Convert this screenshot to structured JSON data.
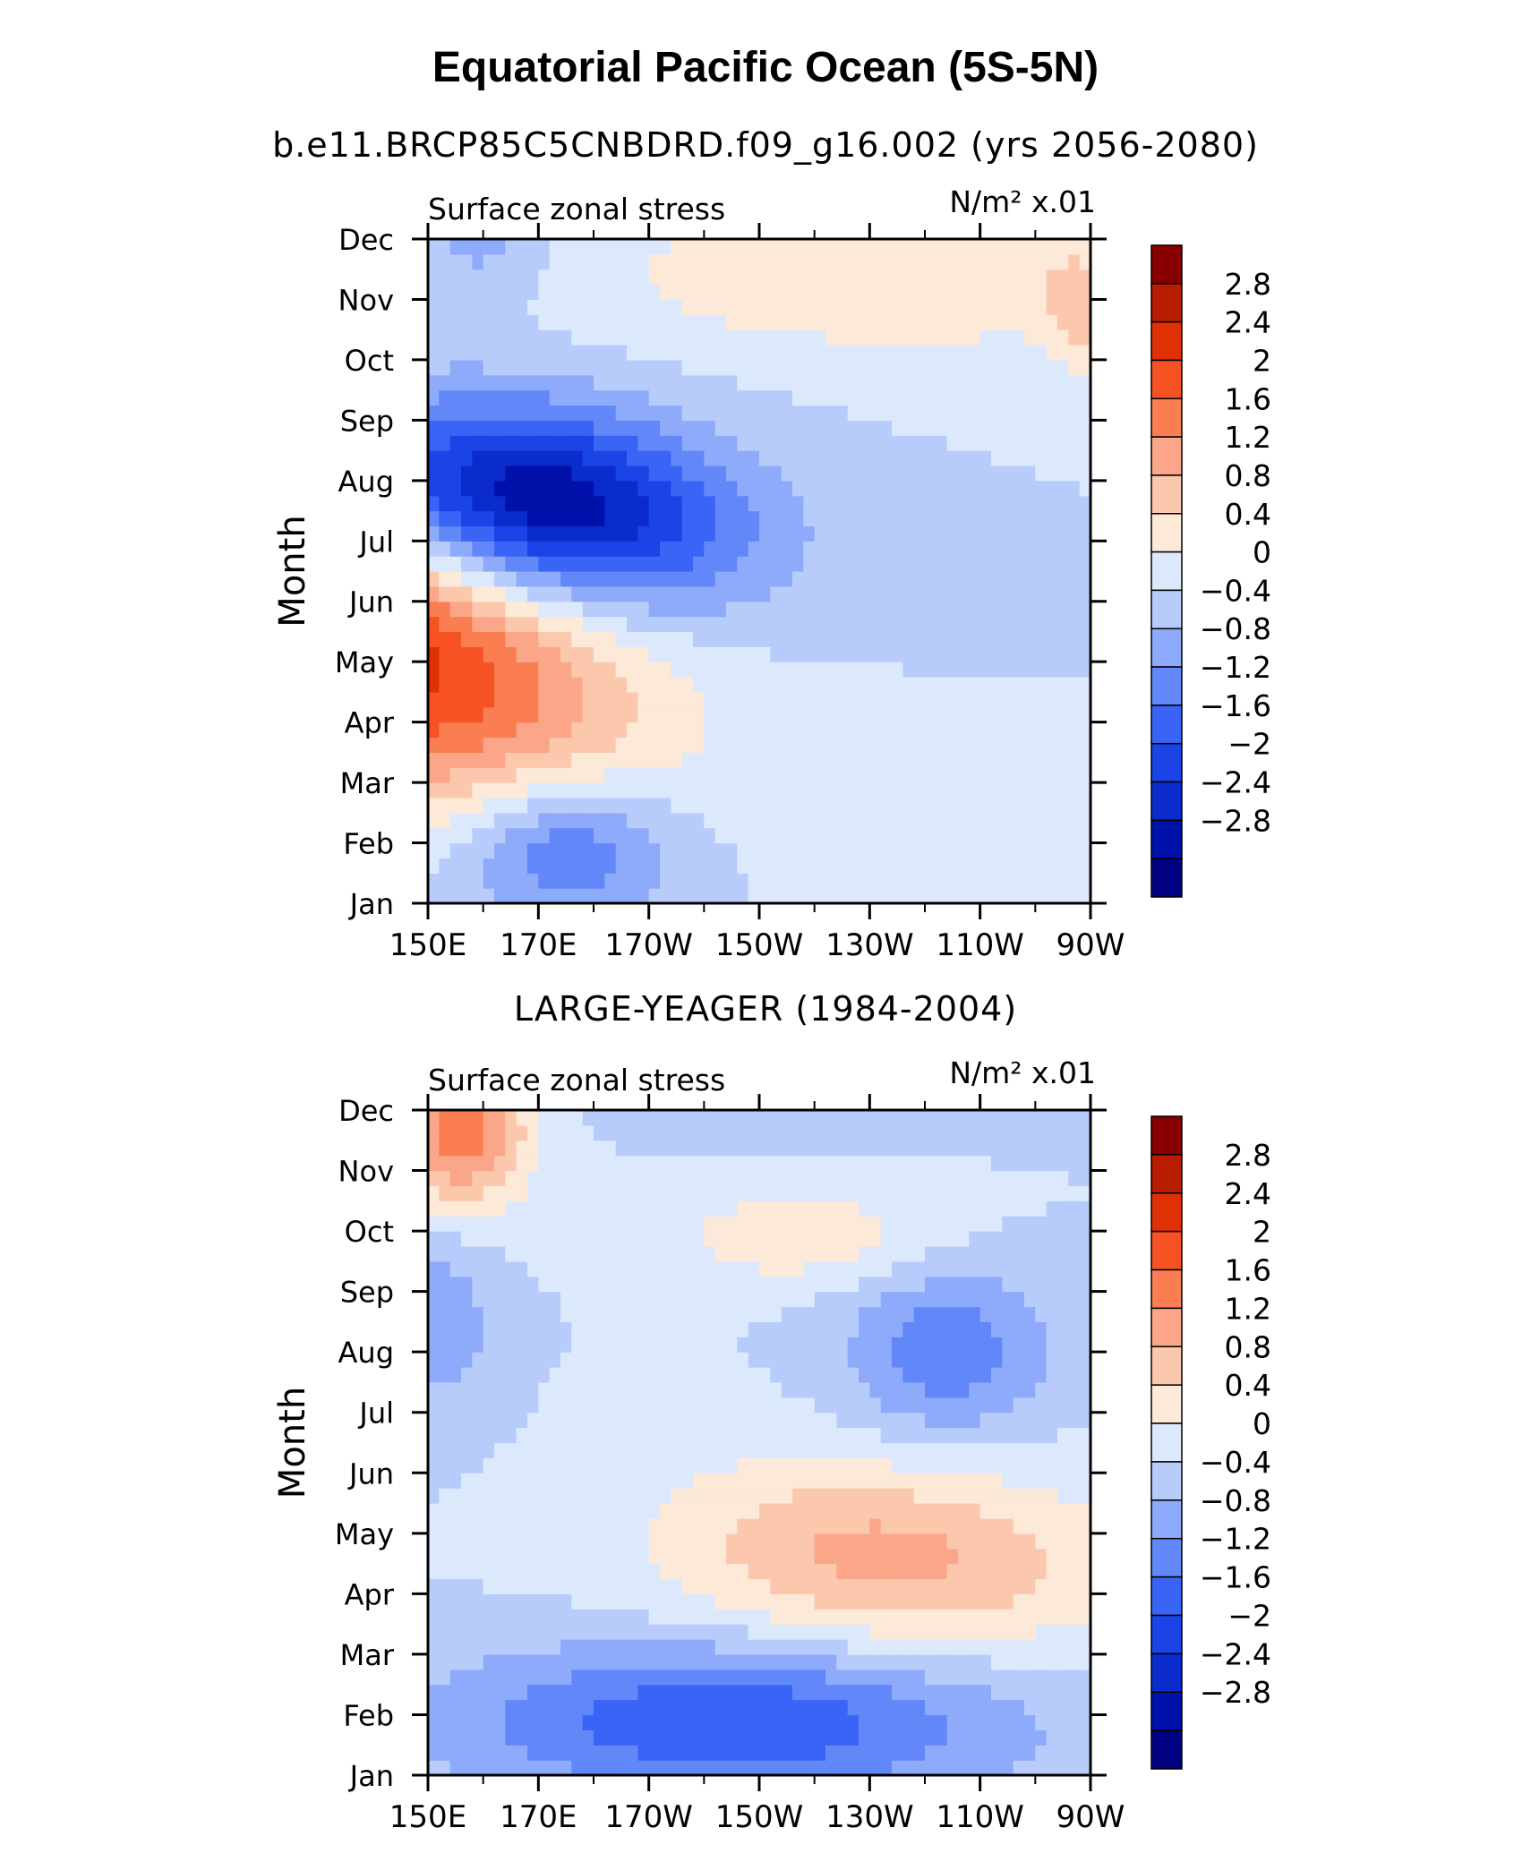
{
  "title": "Equatorial Pacific Ocean (5S-5N)",
  "chart_data": [
    {
      "type": "heatmap",
      "subtitle": "b.e11.BRCP85C5CNBDRD.f09_g16.002 (yrs 2056-2080)",
      "left_label": "Surface zonal stress",
      "units_label": "N/m² x.01",
      "ylabel": "Month",
      "x_ticks": [
        "150E",
        "170E",
        "170W",
        "150W",
        "130W",
        "110W",
        "90W"
      ],
      "y_ticks": [
        "Jan",
        "Feb",
        "Mar",
        "Apr",
        "May",
        "Jun",
        "Jul",
        "Aug",
        "Sep",
        "Oct",
        "Nov",
        "Dec"
      ],
      "features": [
        {
          "kind": "max",
          "lon": 140,
          "month": 4.2,
          "sx": 45,
          "sy": 2.4,
          "amp": 2.7,
          "tilt": 0.35
        },
        {
          "kind": "min",
          "lon": 170,
          "month": 6.6,
          "sx": 35,
          "sy": 1.6,
          "amp": -3.0,
          "tilt": 0.25
        },
        {
          "kind": "max",
          "lon": 235,
          "month": 10.4,
          "sx": 55,
          "sy": 1.3,
          "amp": 0.8,
          "tilt": 0
        },
        {
          "kind": "max",
          "lon": 268,
          "month": 9.7,
          "sx": 6,
          "sy": 1.0,
          "amp": 0.6,
          "tilt": 0
        },
        {
          "kind": "min",
          "lon": 175,
          "month": 0.9,
          "sx": 20,
          "sy": 1.2,
          "amp": -1.4,
          "tilt": 0
        },
        {
          "kind": "min",
          "lon": 160,
          "month": 11.0,
          "sx": 12,
          "sy": 1.0,
          "amp": -0.6,
          "tilt": 0
        }
      ]
    },
    {
      "type": "heatmap",
      "subtitle": "LARGE-YEAGER (1984-2004)",
      "left_label": "Surface zonal stress",
      "units_label": "N/m² x.01",
      "ylabel": "Month",
      "x_ticks": [
        "150E",
        "170E",
        "170W",
        "150W",
        "130W",
        "110W",
        "90W"
      ],
      "y_ticks": [
        "Jan",
        "Feb",
        "Mar",
        "Apr",
        "May",
        "Jun",
        "Jul",
        "Aug",
        "Sep",
        "Oct",
        "Nov",
        "Dec"
      ],
      "features": [
        {
          "kind": "max",
          "lon": 233,
          "month": 3.6,
          "sx": 40,
          "sy": 1.6,
          "amp": 1.35,
          "tilt": 0.1
        },
        {
          "kind": "max",
          "lon": 156,
          "month": 10.7,
          "sx": 12,
          "sy": 1.3,
          "amp": 1.9,
          "tilt": 0
        },
        {
          "kind": "max",
          "lon": 218,
          "month": 8.9,
          "sx": 25,
          "sy": 0.8,
          "amp": 0.7,
          "tilt": 0
        },
        {
          "kind": "min",
          "lon": 205,
          "month": 0.9,
          "sx": 50,
          "sy": 1.3,
          "amp": -1.6,
          "tilt": 0
        },
        {
          "kind": "min",
          "lon": 218,
          "month": 11.8,
          "sx": 30,
          "sy": 0.8,
          "amp": -1.3,
          "tilt": 0
        },
        {
          "kind": "min",
          "lon": 244,
          "month": 7.0,
          "sx": 18,
          "sy": 1.4,
          "amp": -1.1,
          "tilt": 0
        },
        {
          "kind": "min",
          "lon": 152,
          "month": 7.5,
          "sx": 10,
          "sy": 1.5,
          "amp": -0.7,
          "tilt": 0
        }
      ]
    }
  ],
  "colorbar": {
    "labels": [
      "2.8",
      "2.4",
      "2",
      "1.6",
      "1.2",
      "0.8",
      "0.4",
      "0",
      "-0.4",
      "-0.8",
      "-1.2",
      "-1.6",
      "-2",
      "-2.4",
      "-2.8"
    ],
    "levels": [
      -2.8,
      -2.4,
      -2,
      -1.6,
      -1.2,
      -0.8,
      -0.4,
      0,
      0.4,
      0.8,
      1.2,
      1.6,
      2,
      2.4,
      2.8
    ],
    "colors": [
      "#000080",
      "#0011aa",
      "#0a2ccc",
      "#1a44e6",
      "#3a64f5",
      "#6287f9",
      "#8eaafa",
      "#b8ccfb",
      "#dce9fd",
      "#fde9d8",
      "#fcc8ad",
      "#fba688",
      "#fa7e52",
      "#f65224",
      "#e03005",
      "#b81d02",
      "#880000"
    ]
  }
}
